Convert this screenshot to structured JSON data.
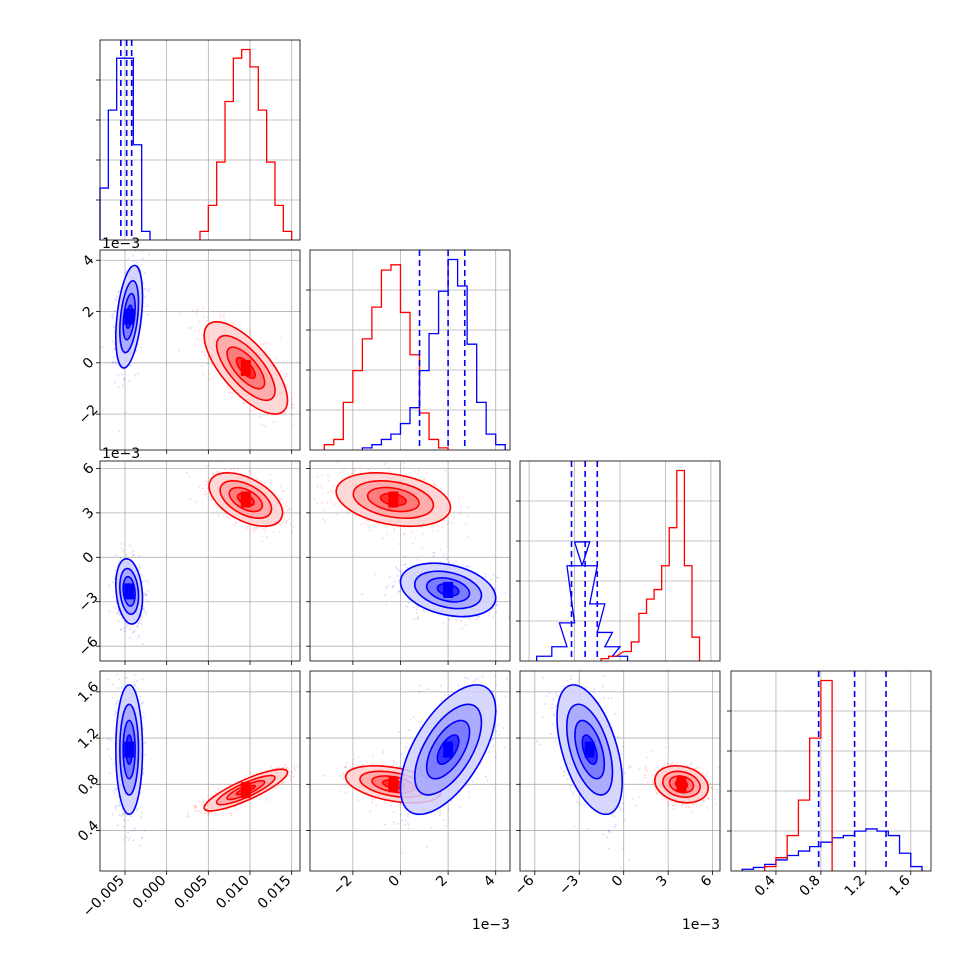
{
  "figure": {
    "type": "corner",
    "series_colors": [
      "#0000ff",
      "#ff0000"
    ],
    "quantile_line_color": "#0000ff",
    "grid": true
  },
  "chart_data": [
    {
      "id": "hist_p0",
      "type": "bar",
      "series": [
        {
          "color": "#0000ff",
          "x": [
            -0.0075,
            -0.0065,
            -0.0055,
            -0.0045,
            -0.0035,
            -0.0025
          ],
          "values": [
            6,
            15,
            21,
            21,
            11,
            1
          ]
        },
        {
          "color": "#ff0000",
          "x": [
            0.0045,
            0.0055,
            0.0065,
            0.0075,
            0.0085,
            0.0095,
            0.0105,
            0.0115,
            0.0125,
            0.0135,
            0.0145
          ],
          "values": [
            1,
            4,
            9,
            16,
            21,
            22,
            20,
            15,
            9,
            4,
            1
          ]
        }
      ],
      "quantiles": [
        -0.0055,
        -0.0048,
        -0.0042
      ],
      "xlim": [
        -0.008,
        0.016
      ]
    },
    {
      "id": "hist_p1",
      "type": "bar",
      "series": [
        {
          "color": "#ff0000",
          "x": [
            -3.0,
            -2.6,
            -2.2,
            -1.8,
            -1.4,
            -1.0,
            -0.6,
            -0.2,
            0.2,
            0.6,
            1.0,
            1.4,
            1.8
          ],
          "values": [
            1,
            2,
            9,
            15,
            21,
            27,
            34,
            35,
            26,
            18,
            7,
            2,
            0.4
          ]
        },
        {
          "color": "#0000ff",
          "x": [
            -1.4,
            -1.0,
            -0.6,
            -0.2,
            0.2,
            0.6,
            1.0,
            1.4,
            1.8,
            2.2,
            2.6,
            3.0,
            3.4,
            3.8,
            4.2
          ],
          "values": [
            0.4,
            1,
            2,
            3,
            5,
            8,
            15,
            22,
            30,
            36,
            31,
            20,
            9,
            3,
            1
          ]
        }
      ],
      "quantiles": [
        0.8,
        2.0,
        2.7
      ],
      "xlim": [
        -3.8,
        4.6
      ],
      "offset": "1e−3"
    },
    {
      "id": "hist_p2",
      "type": "bar",
      "series": [
        {
          "color": "#0000ff",
          "x": [
            -5.0,
            -4.0,
            -3.5,
            -3.0,
            -2.5,
            -2.0,
            -1.5,
            -1.0,
            -0.5,
            0.0
          ],
          "values": [
            1,
            3,
            8,
            20,
            25,
            20,
            12,
            6,
            3,
            1
          ]
        },
        {
          "color": "#ff0000",
          "x": [
            -1.0,
            -0.5,
            0.5,
            1.0,
            1.5,
            2.0,
            2.5,
            3.0,
            3.5,
            4.0,
            4.5,
            5.0
          ],
          "values": [
            0.5,
            1,
            2,
            4,
            10,
            13,
            15,
            20,
            28,
            40,
            20,
            5
          ]
        }
      ],
      "quantiles": [
        -3.2,
        -2.3,
        -1.5
      ],
      "xlim": [
        -6.6,
        6.6
      ],
      "offset": "1e−3"
    },
    {
      "id": "hist_p3",
      "type": "bar",
      "series": [
        {
          "color": "#0000ff",
          "x": [
            0.15,
            0.25,
            0.35,
            0.45,
            0.55,
            0.65,
            0.75,
            0.85,
            0.95,
            1.05,
            1.15,
            1.25,
            1.35,
            1.45,
            1.55,
            1.65
          ],
          "values": [
            0.4,
            0.8,
            1.5,
            2.5,
            3.5,
            4.5,
            5.5,
            6.5,
            7.5,
            8,
            9,
            9.5,
            9,
            8,
            4,
            1
          ]
        },
        {
          "color": "#ff0000",
          "x": [
            0.35,
            0.45,
            0.55,
            0.65,
            0.75,
            0.85
          ],
          "values": [
            1,
            3,
            8,
            16,
            30,
            43
          ]
        }
      ],
      "quantiles": [
        0.78,
        1.1,
        1.38
      ],
      "xlim": [
        0.0,
        1.78
      ]
    },
    {
      "id": "scatter_p1_vs_p0",
      "type": "scatter",
      "x_ticks": [],
      "y_ticks": [
        "−2",
        "0",
        "2",
        "4"
      ],
      "offset": "1e−3",
      "xlim": [
        -0.008,
        0.016
      ],
      "ylim": [
        -3.4,
        4.4
      ],
      "blobs": [
        {
          "color": "#0000ff",
          "cx": -0.0045,
          "cy": 1.8,
          "sx": 0.0008,
          "sy": 1.0,
          "rho": 0.4
        },
        {
          "color": "#ff0000",
          "cx": 0.0095,
          "cy": -0.2,
          "sx": 0.0025,
          "sy": 0.9,
          "rho": -0.7
        }
      ]
    },
    {
      "id": "scatter_p2_vs_p0",
      "type": "scatter",
      "x_ticks": [],
      "y_ticks": [
        "−6",
        "−3",
        "0",
        "3",
        "6"
      ],
      "offset": "1e−3",
      "xlim": [
        -0.008,
        0.016
      ],
      "ylim": [
        -7,
        6.5
      ],
      "blobs": [
        {
          "color": "#0000ff",
          "cx": -0.0045,
          "cy": -2.3,
          "sx": 0.0008,
          "sy": 1.1,
          "rho": -0.2
        },
        {
          "color": "#ff0000",
          "cx": 0.0095,
          "cy": 3.9,
          "sx": 0.0022,
          "sy": 0.9,
          "rho": -0.5
        }
      ]
    },
    {
      "id": "scatter_p2_vs_p1",
      "type": "scatter",
      "x_ticks": [],
      "y_ticks": [],
      "xlim": [
        -3.8,
        4.6
      ],
      "ylim": [
        -7,
        6.5
      ],
      "blobs": [
        {
          "color": "#ff0000",
          "cx": -0.3,
          "cy": 3.9,
          "sx": 1.2,
          "sy": 0.9,
          "rho": -0.3
        },
        {
          "color": "#0000ff",
          "cx": 2.0,
          "cy": -2.2,
          "sx": 1.0,
          "sy": 0.9,
          "rho": -0.3
        }
      ]
    },
    {
      "id": "scatter_p3_vs_p0",
      "type": "scatter",
      "x_ticks": [
        "−0.005",
        "0.000",
        "0.005",
        "0.010",
        "0.015"
      ],
      "y_ticks": [
        "0.4",
        "0.8",
        "1.2",
        "1.6"
      ],
      "xlim": [
        -0.008,
        0.016
      ],
      "ylim": [
        0.05,
        1.78
      ],
      "blobs": [
        {
          "color": "#0000ff",
          "cx": -0.0045,
          "cy": 1.1,
          "sx": 0.0008,
          "sy": 0.28,
          "rho": 0.0
        },
        {
          "color": "#ff0000",
          "cx": 0.0095,
          "cy": 0.75,
          "sx": 0.0025,
          "sy": 0.09,
          "rho": 0.85
        }
      ]
    },
    {
      "id": "scatter_p3_vs_p1",
      "type": "scatter",
      "x_ticks": [
        "−2",
        "0",
        "2",
        "4"
      ],
      "y_ticks": [],
      "offset": "1e−3",
      "xlim": [
        -3.8,
        4.6
      ],
      "ylim": [
        0.05,
        1.78
      ],
      "blobs": [
        {
          "color": "#ff0000",
          "cx": -0.3,
          "cy": 0.8,
          "sx": 1.0,
          "sy": 0.08,
          "rho": -0.4
        },
        {
          "color": "#0000ff",
          "cx": 2.0,
          "cy": 1.1,
          "sx": 1.0,
          "sy": 0.28,
          "rho": 0.6
        }
      ]
    },
    {
      "id": "scatter_p3_vs_p2",
      "type": "scatter",
      "x_ticks": [
        "−6",
        "−3",
        "0",
        "3",
        "6"
      ],
      "y_ticks": [],
      "offset": "1e−3",
      "xlim": [
        -7,
        6.5
      ],
      "ylim": [
        0.05,
        1.78
      ],
      "blobs": [
        {
          "color": "#0000ff",
          "cx": -2.3,
          "cy": 1.1,
          "sx": 1.1,
          "sy": 0.28,
          "rho": -0.5
        },
        {
          "color": "#ff0000",
          "cx": 3.9,
          "cy": 0.8,
          "sx": 0.9,
          "sy": 0.08,
          "rho": -0.2
        }
      ]
    }
  ]
}
